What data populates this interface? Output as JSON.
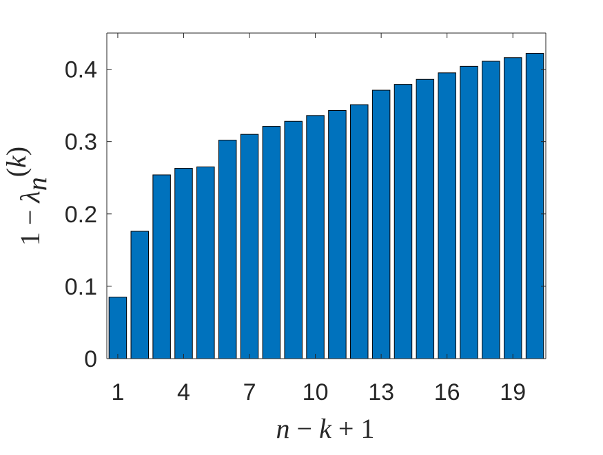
{
  "chart_data": {
    "type": "bar",
    "categories": [
      1,
      2,
      3,
      4,
      5,
      6,
      7,
      8,
      9,
      10,
      11,
      12,
      13,
      14,
      15,
      16,
      17,
      18,
      19,
      20
    ],
    "values": [
      0.085,
      0.176,
      0.254,
      0.263,
      0.265,
      0.302,
      0.31,
      0.321,
      0.328,
      0.336,
      0.343,
      0.351,
      0.371,
      0.379,
      0.386,
      0.395,
      0.404,
      0.411,
      0.416,
      0.422
    ],
    "title": "",
    "xlabel": "n − k + 1",
    "ylabel": "1 − λ_n^(k)",
    "ylim": [
      0,
      0.45
    ],
    "xlim": [
      0.5,
      20.5
    ],
    "xticks": [
      "1",
      "4",
      "7",
      "10",
      "13",
      "16",
      "19"
    ],
    "yticks": [
      "0",
      "0.1",
      "0.2",
      "0.3",
      "0.4"
    ],
    "bar_color": "#0072BD",
    "grid": false,
    "legend": "none"
  }
}
